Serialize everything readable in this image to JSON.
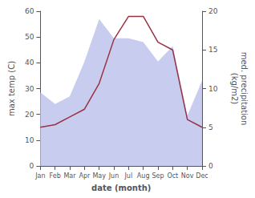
{
  "chart_data": {
    "type": "line",
    "categories": [
      "Jan",
      "Feb",
      "Mar",
      "Apr",
      "May",
      "Jun",
      "Jul",
      "Aug",
      "Sep",
      "Oct",
      "Nov",
      "Dec"
    ],
    "xlabel": "date (month)",
    "ylabel": "max temp (C)",
    "y2label": "med. precipitation\n(kg/m2)",
    "ylim": [
      0,
      60
    ],
    "yticks": [
      0,
      10,
      20,
      30,
      40,
      50,
      60
    ],
    "y2lim": [
      0,
      20
    ],
    "y2ticks": [
      0,
      5,
      10,
      15,
      20
    ],
    "grid": false,
    "series": [
      {
        "type": "area",
        "color": "#c8ccee",
        "axis": "y2",
        "values": [
          9.5,
          8.0,
          9.0,
          13.5,
          19.0,
          16.5,
          16.5,
          16.0,
          13.5,
          15.5,
          6.5,
          11.0
        ]
      },
      {
        "type": "line",
        "color": "#993344",
        "values": [
          15,
          16,
          19,
          22,
          32,
          49,
          58,
          58,
          48,
          45,
          18,
          15
        ]
      }
    ]
  }
}
